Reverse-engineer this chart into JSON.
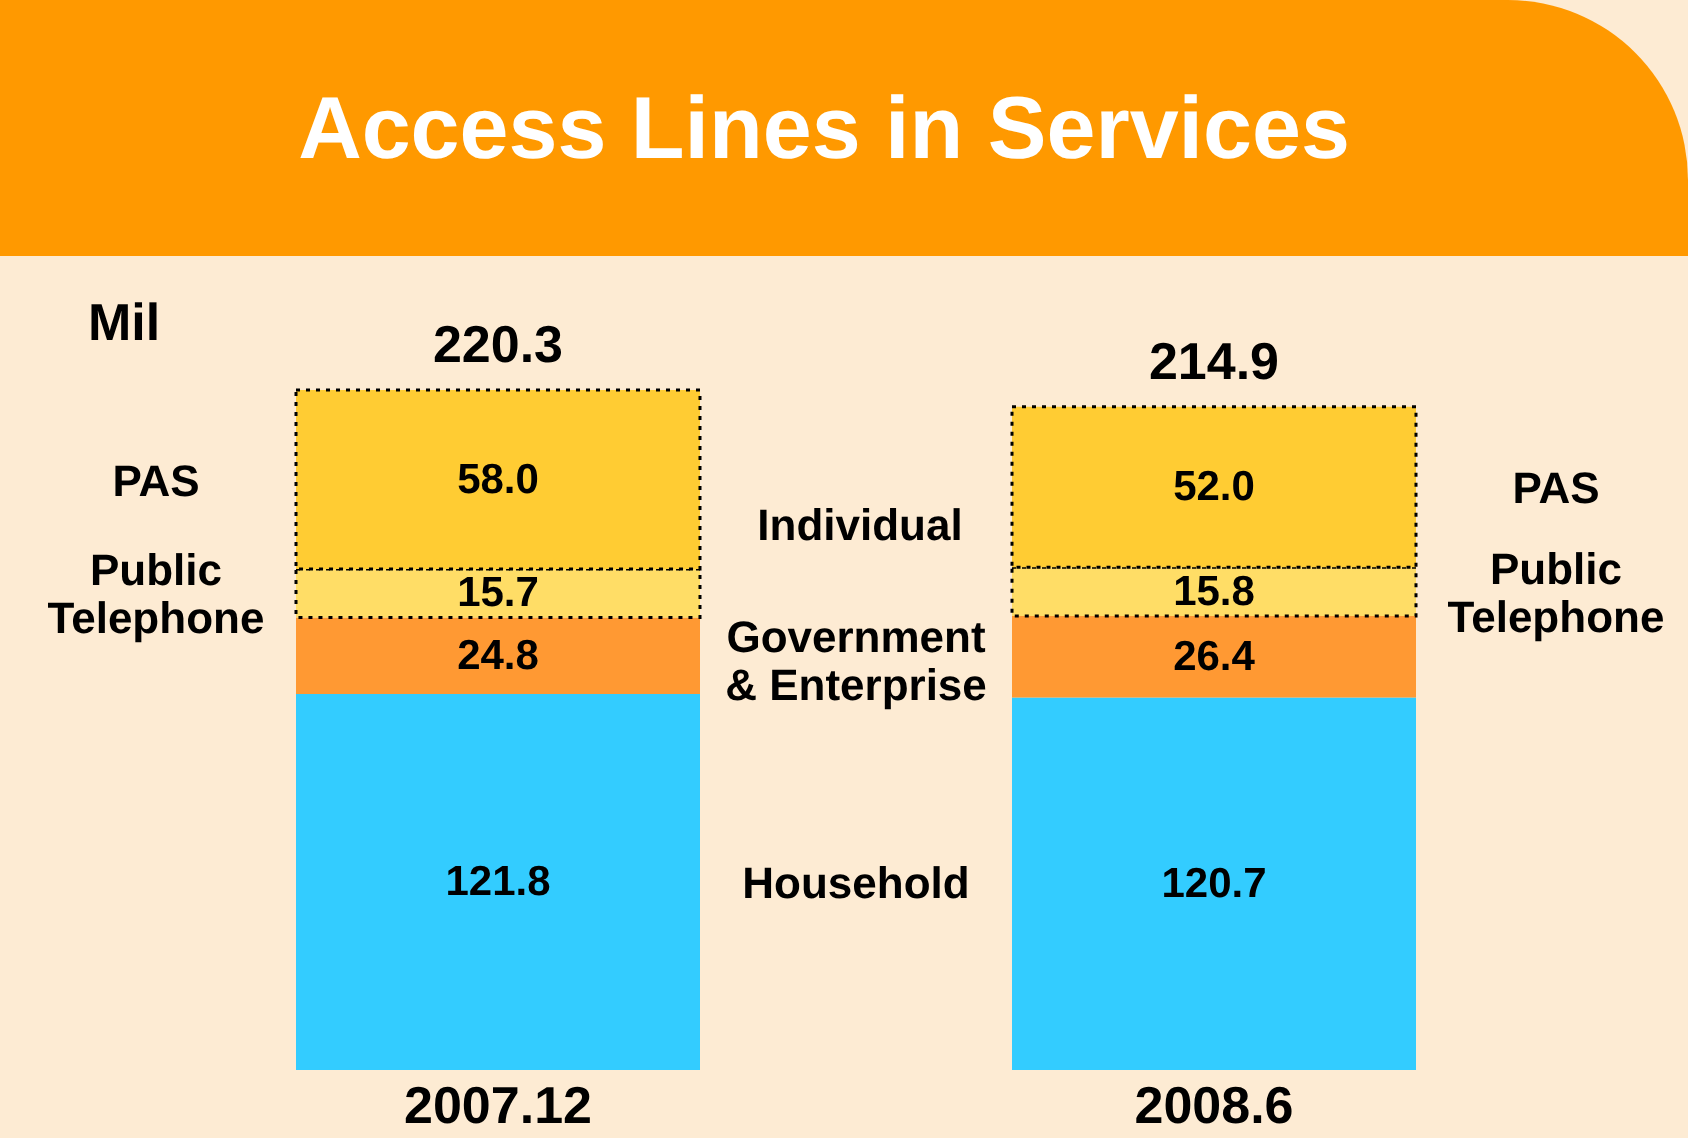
{
  "chart_data": {
    "type": "bar",
    "title": "Access Lines in Services",
    "ylabel": "Mil",
    "categories": [
      "2007.12",
      "2008.6"
    ],
    "stacked": true,
    "data_labels": true,
    "series": [
      {
        "name": "Household",
        "color": "#33ccff",
        "values": [
          121.8,
          120.7
        ]
      },
      {
        "name": "Government & Enterprise",
        "color": "#ff9933",
        "values": [
          24.8,
          26.4
        ]
      },
      {
        "name": "Public Telephone",
        "color": "#ffdd66",
        "values": [
          15.7,
          15.8
        ],
        "line_style": "dotted"
      },
      {
        "name": "PAS",
        "color": "#ffcc33",
        "values": [
          58.0,
          52.0
        ],
        "value_labels": [
          "58.0",
          "52.0"
        ],
        "line_style": "dotted"
      }
    ],
    "totals": [
      "220.3",
      "214.9"
    ],
    "annotations": [
      "Individual"
    ]
  }
}
